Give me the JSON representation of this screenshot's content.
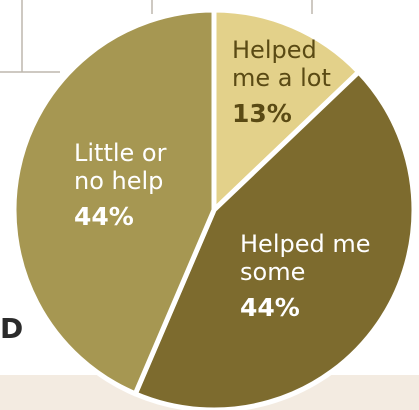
{
  "chart_data": {
    "type": "pie",
    "title": "",
    "slices": [
      {
        "label": [
          "Helped",
          "me a lot"
        ],
        "value": 13,
        "value_label": "13%",
        "color": "#e3d18a",
        "text_color": "#5a4a14"
      },
      {
        "label": [
          "Helped me",
          "some"
        ],
        "value": 44,
        "value_label": "44%",
        "color": "#7d6b2e",
        "text_color": "#ffffff"
      },
      {
        "label": [
          "Little or",
          "no help"
        ],
        "value": 44,
        "value_label": "44%",
        "color": "#a69752",
        "text_color": "#ffffff"
      }
    ],
    "start_angle": "top",
    "direction": "clockwise",
    "legend": "none"
  },
  "edge_text": "D",
  "colors": {
    "background": "#ffffff",
    "bottom_band": "#f3ebe1",
    "grid_lines": "#bdb7ad",
    "slice_separator": "#ffffff"
  }
}
